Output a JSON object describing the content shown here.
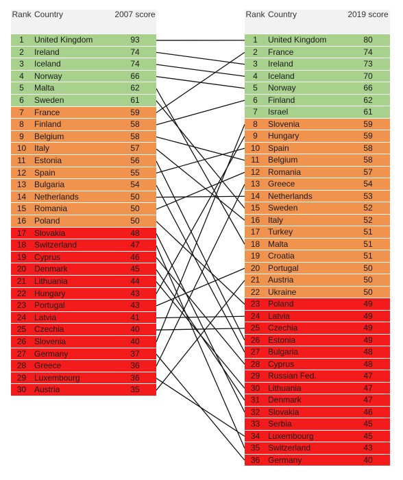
{
  "tables": [
    {
      "header": {
        "rank": "Rank",
        "country": "Country",
        "score": "2007 score"
      },
      "rows": [
        {
          "rank": "1",
          "country": "United Kingdom",
          "score": 93,
          "color": "#a9d18e"
        },
        {
          "rank": "2",
          "country": "Ireland",
          "score": 74,
          "color": "#a9d18e"
        },
        {
          "rank": "3",
          "country": "Iceland",
          "score": 74,
          "color": "#a9d18e"
        },
        {
          "rank": "4",
          "country": "Norway",
          "score": 66,
          "color": "#a9d18e"
        },
        {
          "rank": "5",
          "country": "Malta",
          "score": 62,
          "color": "#a9d18e"
        },
        {
          "rank": "6",
          "country": "Sweden",
          "score": 61,
          "color": "#a9d18e"
        },
        {
          "rank": "7",
          "country": "France",
          "score": 59,
          "color": "#f0934f"
        },
        {
          "rank": "8",
          "country": "Finland",
          "score": 58,
          "color": "#f0934f"
        },
        {
          "rank": "9",
          "country": "Belgium",
          "score": 58,
          "color": "#f0934f"
        },
        {
          "rank": "10",
          "country": "Italy",
          "score": 57,
          "color": "#f0934f"
        },
        {
          "rank": "11",
          "country": "Estonia",
          "score": 56,
          "color": "#f0934f"
        },
        {
          "rank": "12",
          "country": "Spain",
          "score": 55,
          "color": "#f0934f"
        },
        {
          "rank": "13",
          "country": "Bulgaria",
          "score": 54,
          "color": "#f0934f"
        },
        {
          "rank": "14",
          "country": "Netherlands",
          "score": 50,
          "color": "#f0934f"
        },
        {
          "rank": "15",
          "country": "Romania",
          "score": 50,
          "color": "#f0934f"
        },
        {
          "rank": "16",
          "country": "Poland",
          "score": 50,
          "color": "#f0934f"
        },
        {
          "rank": "17",
          "country": "Slovakia",
          "score": 48,
          "color": "#f31b1b"
        },
        {
          "rank": "18",
          "country": "Switzerland",
          "score": 47,
          "color": "#f31b1b"
        },
        {
          "rank": "19",
          "country": "Cyprus",
          "score": 46,
          "color": "#f31b1b"
        },
        {
          "rank": "20",
          "country": "Denmark",
          "score": 45,
          "color": "#f31b1b"
        },
        {
          "rank": "21",
          "country": "Lithuania",
          "score": 44,
          "color": "#f31b1b"
        },
        {
          "rank": "22",
          "country": "Hungary",
          "score": 43,
          "color": "#f31b1b"
        },
        {
          "rank": "23",
          "country": "Portugal",
          "score": 43,
          "color": "#f31b1b"
        },
        {
          "rank": "24",
          "country": "Latvia",
          "score": 41,
          "color": "#f31b1b"
        },
        {
          "rank": "25",
          "country": "Czechia",
          "score": 40,
          "color": "#f31b1b"
        },
        {
          "rank": "26",
          "country": "Slovenia",
          "score": 40,
          "color": "#f31b1b"
        },
        {
          "rank": "27",
          "country": "Germany",
          "score": 37,
          "color": "#f31b1b"
        },
        {
          "rank": "28",
          "country": "Greece",
          "score": 36,
          "color": "#f31b1b"
        },
        {
          "rank": "29",
          "country": "Luxembourg",
          "score": 36,
          "color": "#f31b1b"
        },
        {
          "rank": "30",
          "country": "Austria",
          "score": 35,
          "color": "#f31b1b"
        }
      ]
    },
    {
      "header": {
        "rank": "Rank",
        "country": "Country",
        "score": "2019 score"
      },
      "rows": [
        {
          "rank": "1",
          "country": "United Kingdom",
          "score": 80,
          "color": "#a9d18e"
        },
        {
          "rank": "2",
          "country": "France",
          "score": 74,
          "color": "#a9d18e"
        },
        {
          "rank": "3",
          "country": "Ireland",
          "score": 73,
          "color": "#a9d18e"
        },
        {
          "rank": "4",
          "country": "Iceland",
          "score": 70,
          "color": "#a9d18e"
        },
        {
          "rank": "5",
          "country": "Norway",
          "score": 66,
          "color": "#a9d18e"
        },
        {
          "rank": "6",
          "country": "Finland",
          "score": 62,
          "color": "#a9d18e"
        },
        {
          "rank": "7",
          "country": "Israel",
          "score": 61,
          "color": "#a9d18e"
        },
        {
          "rank": "8",
          "country": "Slovenia",
          "score": 59,
          "color": "#f0934f"
        },
        {
          "rank": "9",
          "country": "Hungary",
          "score": 59,
          "color": "#f0934f"
        },
        {
          "rank": "10",
          "country": "Spain",
          "score": 58,
          "color": "#f0934f"
        },
        {
          "rank": "11",
          "country": "Belgium",
          "score": 58,
          "color": "#f0934f"
        },
        {
          "rank": "12",
          "country": "Romania",
          "score": 57,
          "color": "#f0934f"
        },
        {
          "rank": "13",
          "country": "Greece",
          "score": 54,
          "color": "#f0934f"
        },
        {
          "rank": "14",
          "country": "Netherlands",
          "score": 53,
          "color": "#f0934f"
        },
        {
          "rank": "15",
          "country": "Sweden",
          "score": 52,
          "color": "#f0934f"
        },
        {
          "rank": "16",
          "country": "Italy",
          "score": 52,
          "color": "#f0934f"
        },
        {
          "rank": "17",
          "country": "Turkey",
          "score": 51,
          "color": "#f0934f"
        },
        {
          "rank": "18",
          "country": "Malta",
          "score": 51,
          "color": "#f0934f"
        },
        {
          "rank": "19",
          "country": "Croatia",
          "score": 51,
          "color": "#f0934f"
        },
        {
          "rank": "20",
          "country": "Portugal",
          "score": 50,
          "color": "#f0934f"
        },
        {
          "rank": "21",
          "country": "Austria",
          "score": 50,
          "color": "#f0934f"
        },
        {
          "rank": "22",
          "country": "Ukraine",
          "score": 50,
          "color": "#f0934f"
        },
        {
          "rank": "23",
          "country": "Poland",
          "score": 49,
          "color": "#f31b1b"
        },
        {
          "rank": "24",
          "country": "Latvia",
          "score": 49,
          "color": "#f31b1b"
        },
        {
          "rank": "25",
          "country": "Czechia",
          "score": 49,
          "color": "#f31b1b"
        },
        {
          "rank": "26",
          "country": "Estonia",
          "score": 49,
          "color": "#f31b1b"
        },
        {
          "rank": "27",
          "country": "Bulgaria",
          "score": 48,
          "color": "#f31b1b"
        },
        {
          "rank": "28",
          "country": "Cyprus",
          "score": 48,
          "color": "#f31b1b"
        },
        {
          "rank": "29",
          "country": "Russian Fed.",
          "score": 47,
          "color": "#f31b1b"
        },
        {
          "rank": "30",
          "country": "Lithuania",
          "score": 47,
          "color": "#f31b1b"
        },
        {
          "rank": "31",
          "country": "Denmark",
          "score": 47,
          "color": "#f31b1b"
        },
        {
          "rank": "32",
          "country": "Slovakia",
          "score": 46,
          "color": "#f31b1b"
        },
        {
          "rank": "33",
          "country": "Serbia",
          "score": 45,
          "color": "#f31b1b"
        },
        {
          "rank": "34",
          "country": "Luxembourg",
          "score": 45,
          "color": "#f31b1b"
        },
        {
          "rank": "35",
          "country": "Switzerland",
          "score": 43,
          "color": "#f31b1b"
        },
        {
          "rank": "36",
          "country": "Germany",
          "score": 40,
          "color": "#f31b1b"
        }
      ]
    }
  ]
}
